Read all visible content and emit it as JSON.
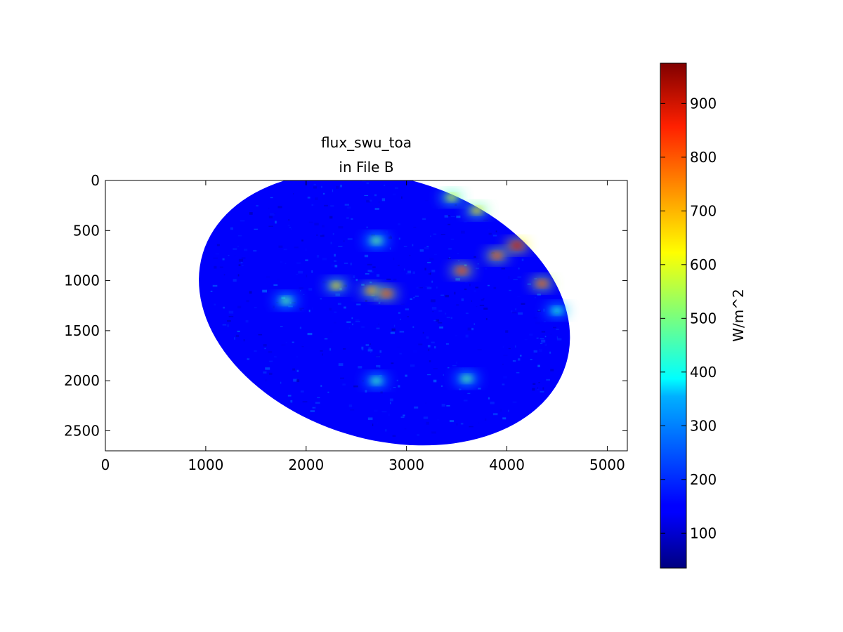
{
  "chart_data": {
    "type": "heatmap",
    "title": "flux_swu_toa\nin File B",
    "title_lines": [
      "flux_swu_toa",
      "in File B"
    ],
    "xlabel": "",
    "ylabel": "",
    "xlim": [
      0,
      5200
    ],
    "ylim": [
      2700,
      0
    ],
    "x_ticks": [
      0,
      1000,
      2000,
      3000,
      4000,
      5000
    ],
    "y_ticks": [
      0,
      500,
      1000,
      1500,
      2000,
      2500
    ],
    "y_axis_inverted": true,
    "grid": false,
    "colormap": "jet",
    "colorbar": {
      "label": "W/m^2",
      "range": [
        35,
        975
      ],
      "ticks": [
        100,
        200,
        300,
        400,
        500,
        600,
        700,
        800,
        900
      ]
    },
    "data_extent": {
      "x_range": [
        830,
        4730
      ],
      "y_range": [
        0,
        2560
      ],
      "shape": "tilted ellipse (earth disk in satellite projection)"
    },
    "value_summary": {
      "background_typical": 150,
      "cloud_bands_typical": 450,
      "bright_cloud_max": 950
    },
    "bright_features": [
      {
        "x": 1800,
        "y": 1200,
        "value": 480
      },
      {
        "x": 2300,
        "y": 1050,
        "value": 650
      },
      {
        "x": 2650,
        "y": 1100,
        "value": 720
      },
      {
        "x": 2800,
        "y": 1130,
        "value": 780
      },
      {
        "x": 2700,
        "y": 600,
        "value": 500
      },
      {
        "x": 3550,
        "y": 900,
        "value": 800
      },
      {
        "x": 3900,
        "y": 750,
        "value": 780
      },
      {
        "x": 4100,
        "y": 650,
        "value": 900
      },
      {
        "x": 4350,
        "y": 1030,
        "value": 780
      },
      {
        "x": 3700,
        "y": 300,
        "value": 650
      },
      {
        "x": 3450,
        "y": 170,
        "value": 600
      },
      {
        "x": 2700,
        "y": 2000,
        "value": 450
      },
      {
        "x": 3600,
        "y": 1980,
        "value": 480
      },
      {
        "x": 4500,
        "y": 1300,
        "value": 420
      }
    ]
  }
}
